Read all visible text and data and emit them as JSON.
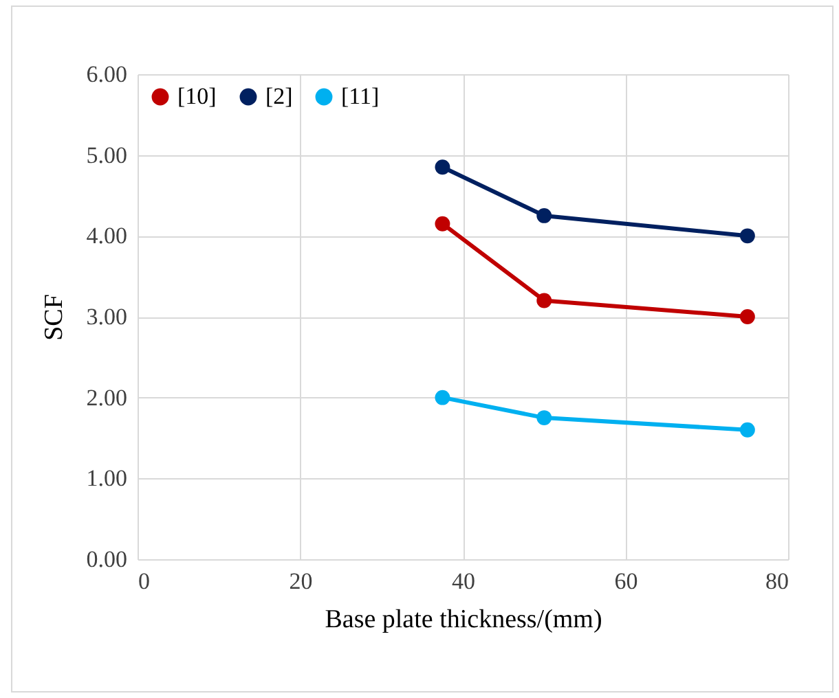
{
  "chart_data": {
    "type": "line",
    "xlabel": "Base plate thickness/(mm)",
    "ylabel": "SCF",
    "x": [
      37.5,
      50,
      75
    ],
    "series": [
      {
        "name": "[10]",
        "color": "#c00000",
        "values": [
          4.15,
          3.2,
          3.0
        ]
      },
      {
        "name": "[2]",
        "color": "#002060",
        "values": [
          4.85,
          4.25,
          4.0
        ]
      },
      {
        "name": "[11]",
        "color": "#00b0f0",
        "values": [
          2.0,
          1.75,
          1.6
        ]
      }
    ],
    "xlim": [
      0,
      80
    ],
    "xticks": [
      0,
      20,
      40,
      60,
      80
    ],
    "ylim": [
      0,
      6
    ],
    "yticks": [
      {
        "value": 0,
        "label": "0.00"
      },
      {
        "value": 1,
        "label": "1.00"
      },
      {
        "value": 2,
        "label": "2.00"
      },
      {
        "value": 3,
        "label": "3.00"
      },
      {
        "value": 4,
        "label": "4.00"
      },
      {
        "value": 5,
        "label": "5.00"
      },
      {
        "value": 6,
        "label": "6.00"
      }
    ],
    "grid": true,
    "legend": "top left",
    "marker": "circle",
    "line_style": "solid"
  }
}
